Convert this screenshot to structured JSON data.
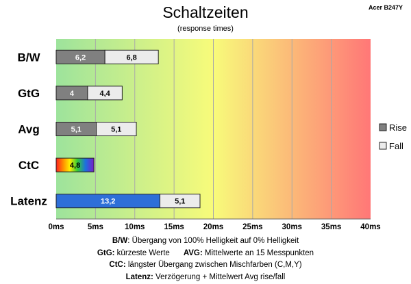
{
  "model_label": "Acer B247Y",
  "chart_data": {
    "type": "bar",
    "orientation": "horizontal",
    "stacked": true,
    "title": "Schaltzeiten",
    "subtitle": "(response times)",
    "categories": [
      "B/W",
      "GtG",
      "Avg",
      "CtC",
      "Latenz"
    ],
    "series": [
      {
        "name": "Rise",
        "values": [
          6.2,
          4,
          5.1,
          4.8,
          13.2
        ],
        "labels": [
          "6,2",
          "4",
          "5,1",
          "4,8",
          "13,2"
        ],
        "color": "#808080"
      },
      {
        "name": "Fall",
        "values": [
          6.8,
          4.4,
          5.1,
          null,
          5.1
        ],
        "labels": [
          "6,8",
          "4,4",
          "5,1",
          "",
          "5,1"
        ],
        "color": "#ececec"
      }
    ],
    "special_colors": {
      "CtC": "rainbow",
      "Latenz": "#2e6fd8"
    },
    "xlim": [
      0,
      40
    ],
    "ticks": [
      0,
      5,
      10,
      15,
      20,
      25,
      30,
      35,
      40
    ],
    "tick_labels": [
      "0ms",
      "5ms",
      "10ms",
      "15ms",
      "20ms",
      "25ms",
      "30ms",
      "35ms",
      "40ms"
    ],
    "background_gradient": [
      "#9de39c",
      "#f8fb7a",
      "#ff7777"
    ],
    "grid": true,
    "legend_position": "right"
  },
  "notes": {
    "line1_key": "B/W",
    "line1_text": ":  Übergang von 100% Helligkeit auf 0% Helligkeit",
    "line2_key_a": "GtG:",
    "line2_text_a": " kürzeste  Werte",
    "line2_key_b": "AVG:",
    "line2_text_b": " Mittelwerte  an 15 Messpunkten",
    "line3_key": "CtC:",
    "line3_text": " längster Übergang  zwischen Mischfarben  (C,M,Y)",
    "line4_key": "Latenz:",
    "line4_text": " Verzögerung  + Mittelwert Avg rise/fall"
  }
}
